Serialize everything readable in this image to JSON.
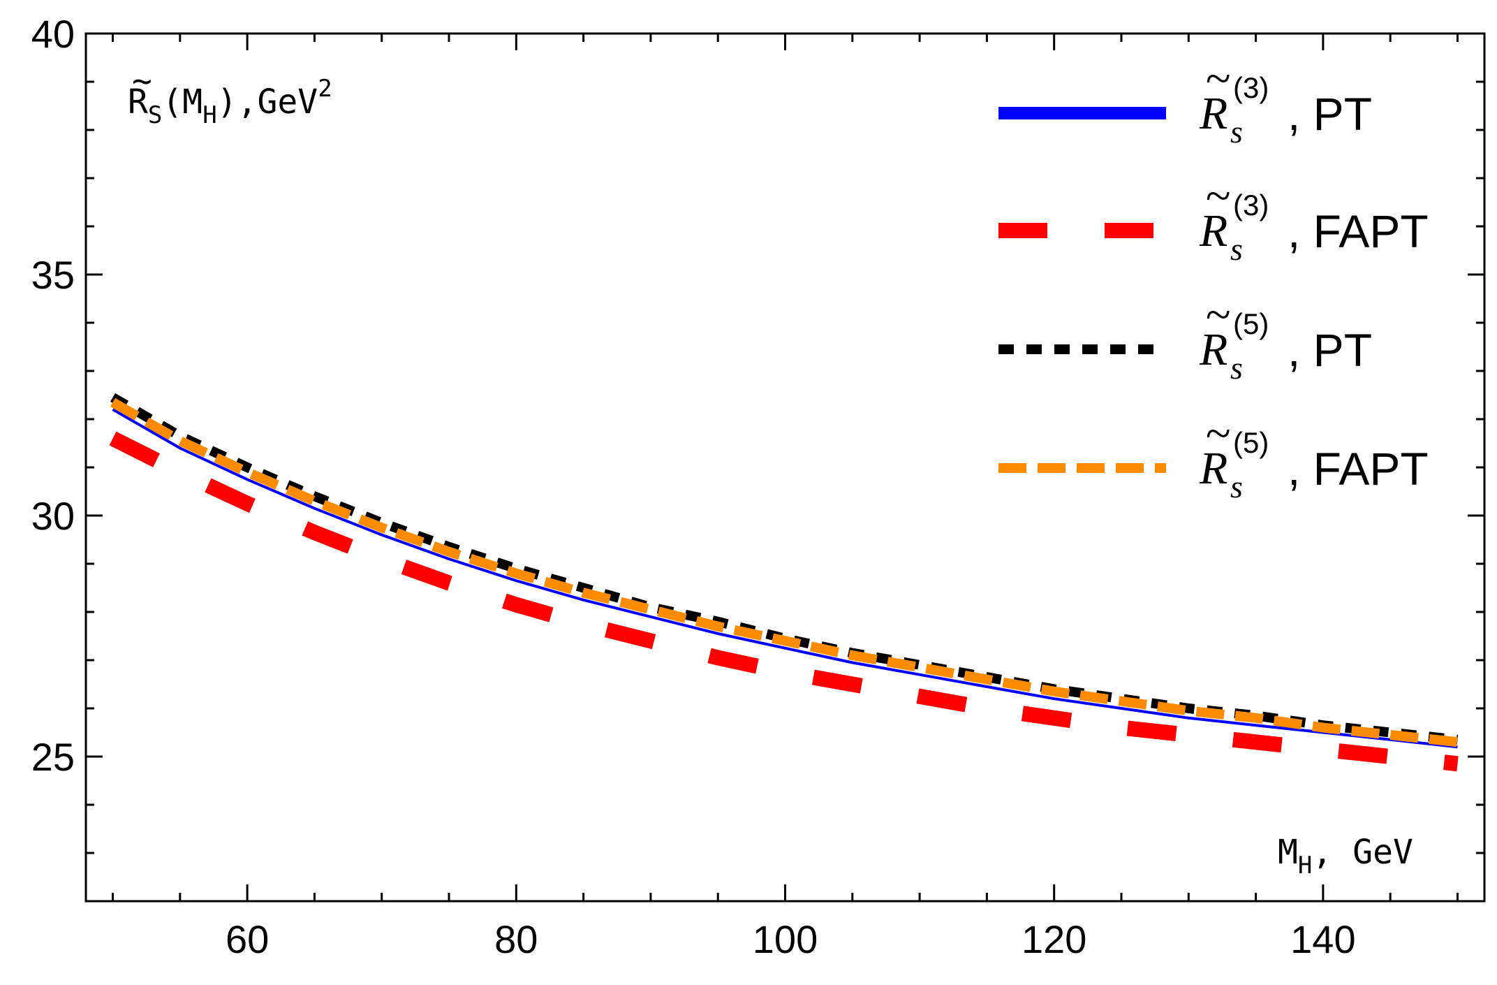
{
  "chart_data": {
    "type": "line",
    "ylabel": {
      "main": "R",
      "sub_s": "S",
      "paren_open": "(",
      "var": "M",
      "var_sub": "H",
      "paren_close": ")",
      "unit": ",GeV",
      "unit_sup": "2"
    },
    "xlabel": {
      "var": "M",
      "var_sub": "H",
      "unit": ", GeV"
    },
    "xlim": [
      48,
      152
    ],
    "ylim": [
      22,
      40
    ],
    "x_ticks": [
      60,
      80,
      100,
      120,
      140
    ],
    "y_ticks": [
      25,
      30,
      35,
      40
    ],
    "grid": false,
    "legend_position": "top-right",
    "x": [
      50,
      55,
      60,
      65,
      70,
      75,
      80,
      85,
      90,
      95,
      100,
      105,
      110,
      115,
      120,
      125,
      130,
      135,
      140,
      145,
      150
    ],
    "series": [
      {
        "name": "PT",
        "sym": "R",
        "sub": "s",
        "order": "(3)",
        "color": "#0000ff",
        "style": "solid",
        "values": [
          32.2,
          31.4,
          30.75,
          30.15,
          29.6,
          29.1,
          28.65,
          28.25,
          27.9,
          27.55,
          27.25,
          26.95,
          26.7,
          26.45,
          26.2,
          26.0,
          25.8,
          25.65,
          25.5,
          25.35,
          25.2
        ]
      },
      {
        "name": "FAPT",
        "sym": "R",
        "sub": "s",
        "order": "(3)",
        "color": "#ff0000",
        "style": "long-dash",
        "values": [
          31.6,
          30.9,
          30.25,
          29.65,
          29.1,
          28.6,
          28.15,
          27.75,
          27.4,
          27.05,
          26.75,
          26.5,
          26.25,
          26.0,
          25.8,
          25.6,
          25.45,
          25.3,
          25.15,
          25.0,
          24.85
        ]
      },
      {
        "name": "PT",
        "sym": "R",
        "sub": "s",
        "order": "(5)",
        "color": "#000000",
        "style": "short-dash",
        "values": [
          32.45,
          31.65,
          31.0,
          30.4,
          29.85,
          29.35,
          28.9,
          28.5,
          28.1,
          27.8,
          27.45,
          27.15,
          26.9,
          26.65,
          26.4,
          26.2,
          26.0,
          25.85,
          25.65,
          25.5,
          25.35
        ]
      },
      {
        "name": "FAPT",
        "sym": "R",
        "sub": "s",
        "order": "(5)",
        "color": "#ff8c00",
        "style": "medium-dash",
        "values": [
          32.35,
          31.55,
          30.9,
          30.3,
          29.75,
          29.25,
          28.8,
          28.4,
          28.05,
          27.7,
          27.4,
          27.1,
          26.85,
          26.6,
          26.35,
          26.15,
          25.95,
          25.8,
          25.6,
          25.45,
          25.3
        ]
      }
    ]
  }
}
